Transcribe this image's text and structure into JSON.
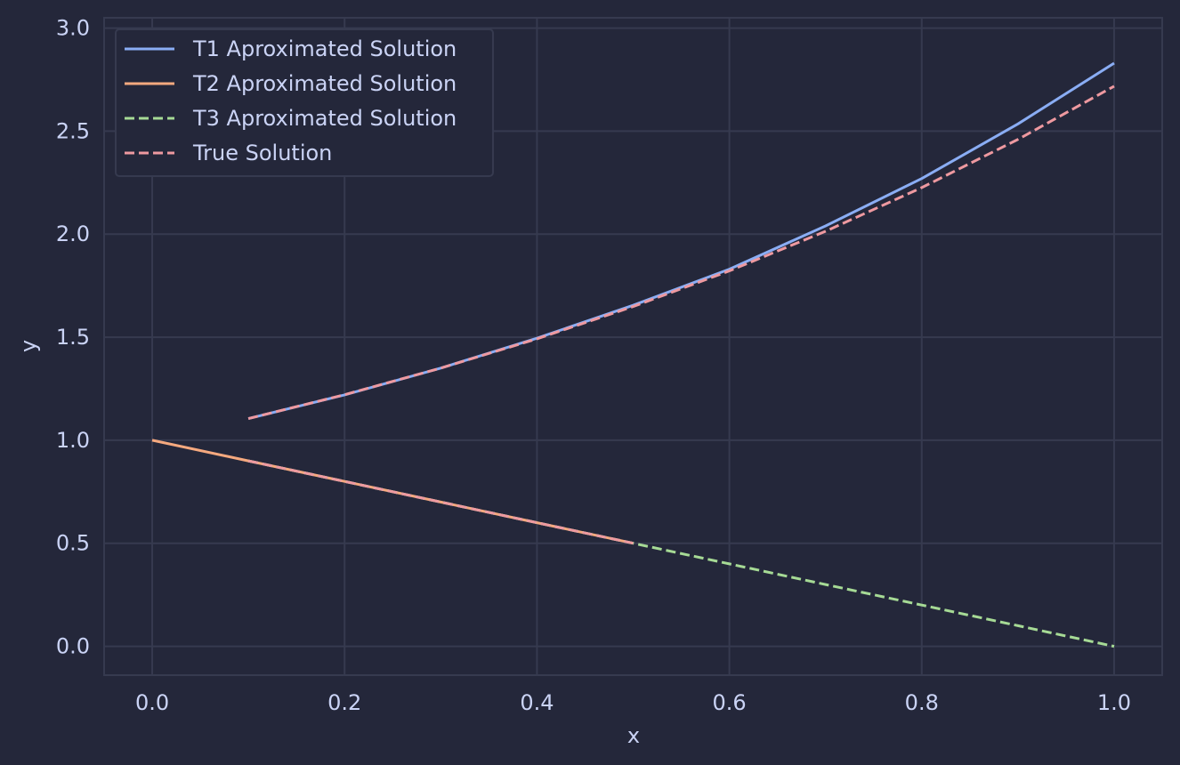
{
  "chart_data": {
    "type": "line",
    "title": "",
    "xlabel": "x",
    "ylabel": "y",
    "xlim": [
      -0.05,
      1.05
    ],
    "ylim": [
      -0.14,
      3.05
    ],
    "xticks": [
      "0.0",
      "0.2",
      "0.4",
      "0.6",
      "0.8",
      "1.0"
    ],
    "xtick_values": [
      0.0,
      0.2,
      0.4,
      0.6,
      0.8,
      1.0
    ],
    "yticks": [
      "0.0",
      "0.5",
      "1.0",
      "1.5",
      "2.0",
      "2.5",
      "3.0"
    ],
    "ytick_values": [
      0.0,
      0.5,
      1.0,
      1.5,
      2.0,
      2.5,
      3.0
    ],
    "grid": true,
    "legend_position": "top-left",
    "colors": {
      "background": "#24273a",
      "grid": "#363a4f",
      "text": "#cad3f5"
    },
    "series": [
      {
        "name": "T1 Aproximated Solution",
        "color": "#8aadf4",
        "dashed": false,
        "x": [
          0.1,
          0.2,
          0.3,
          0.4,
          0.5,
          0.6,
          0.7,
          0.8,
          0.9,
          1.0
        ],
        "y": [
          1.105,
          1.22,
          1.35,
          1.495,
          1.655,
          1.83,
          2.04,
          2.27,
          2.535,
          2.83
        ]
      },
      {
        "name": "T2 Aproximated Solution",
        "color": "#f5a97f",
        "dashed": false,
        "x": [
          0.0,
          0.1,
          0.2,
          0.3,
          0.4,
          0.5
        ],
        "y": [
          1.0,
          0.9,
          0.8,
          0.7,
          0.6,
          0.5
        ]
      },
      {
        "name": "T3 Aproximated Solution",
        "color": "#a6da95",
        "dashed": true,
        "x": [
          0.1,
          0.2,
          0.3,
          0.4,
          0.5,
          0.6,
          0.7,
          0.8,
          0.9,
          1.0
        ],
        "y": [
          0.9,
          0.8,
          0.7,
          0.6,
          0.5,
          0.4,
          0.3,
          0.2,
          0.1,
          0.0
        ]
      },
      {
        "name": "True Solution",
        "color": "#ee99a0",
        "dashed": true,
        "x": [
          0.1,
          0.2,
          0.3,
          0.4,
          0.5,
          0.6,
          0.7,
          0.8,
          0.9,
          1.0
        ],
        "y": [
          1.105,
          1.221,
          1.35,
          1.492,
          1.649,
          1.822,
          2.014,
          2.226,
          2.46,
          2.718
        ]
      },
      {
        "name": "",
        "color": "#ee99a0",
        "dashed": true,
        "x": [
          0.1,
          0.2,
          0.3,
          0.4,
          0.5
        ],
        "y": [
          0.9,
          0.8,
          0.7,
          0.6,
          0.5
        ]
      }
    ]
  }
}
